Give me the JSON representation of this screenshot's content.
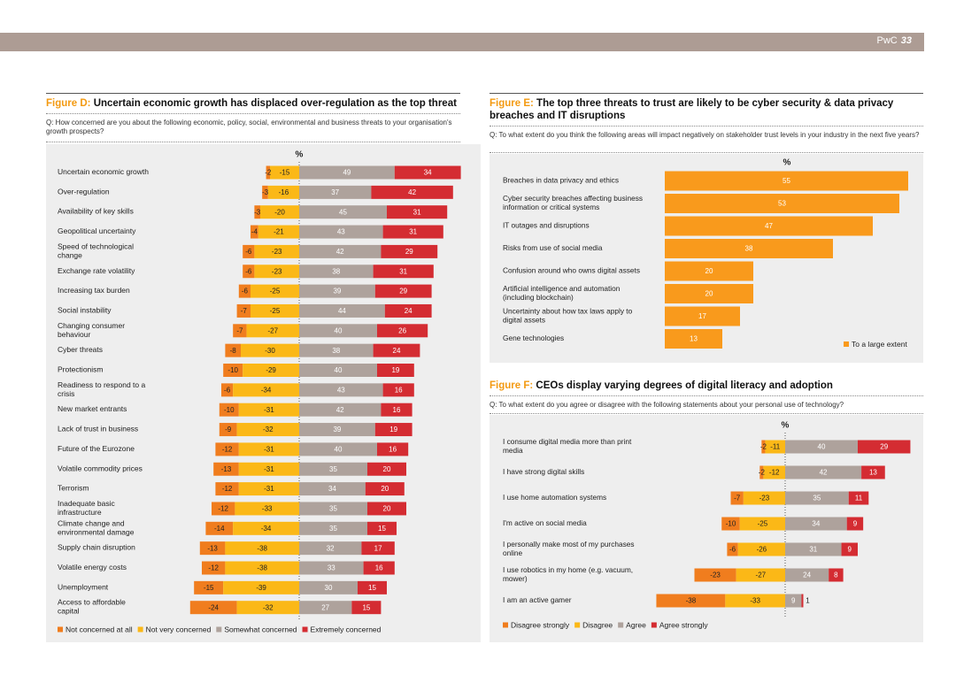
{
  "header": {
    "brand": "PwC",
    "page_number": "33"
  },
  "colors": {
    "not_concerned": "#f07d1e",
    "not_very": "#fbb817",
    "somewhat": "#aea29c",
    "extremely": "#d42c32",
    "orange": "#f99a1c",
    "panel": "#eeeeee"
  },
  "figD": {
    "label": "Figure D:",
    "title": "Uncertain economic growth has displaced over-regulation as the top threat",
    "question": "Q: How concerned are you about the following economic, policy, social, environmental and business threats to your organisation's growth prospects?",
    "unit": "%"
  },
  "figE": {
    "label": "Figure E:",
    "title": "The top three threats to trust are likely to be cyber security & data privacy breaches and IT disruptions",
    "question": "Q: To what extent do you think the following areas will impact negatively on stakeholder trust levels in your industry in the next five years?",
    "unit": "%"
  },
  "figF": {
    "label": "Figure F:",
    "title": "CEOs display varying degrees of digital literacy and adoption",
    "question": "Q: To what extent do you agree or disagree with the following statements about your personal use of technology?",
    "unit": "%"
  },
  "chart_data": [
    {
      "id": "figD",
      "type": "bar",
      "orientation": "horizontal-diverging",
      "unit": "%",
      "categories": [
        "Uncertain economic growth",
        "Over-regulation",
        "Availability of key skills",
        "Geopolitical uncertainty",
        "Speed of technological change",
        "Exchange rate volatility",
        "Increasing tax burden",
        "Social instability",
        "Changing consumer behaviour",
        "Cyber threats",
        "Protectionism",
        "Readiness to respond to a crisis",
        "New market entrants",
        "Lack of trust in business",
        "Future of the Eurozone",
        "Volatile commodity prices",
        "Terrorism",
        "Inadequate basic infrastructure",
        "Climate change and environmental damage",
        "Supply chain disruption",
        "Volatile energy costs",
        "Unemployment",
        "Access to affordable capital"
      ],
      "series": [
        {
          "name": "Not concerned at all",
          "values": [
            -2,
            -3,
            -3,
            -4,
            -6,
            -6,
            -6,
            -7,
            -7,
            -8,
            -10,
            -6,
            -10,
            -9,
            -12,
            -13,
            -12,
            -12,
            -14,
            -13,
            -12,
            -15,
            -24
          ]
        },
        {
          "name": "Not very concerned",
          "values": [
            -15,
            -16,
            -20,
            -21,
            -23,
            -23,
            -25,
            -25,
            -27,
            -30,
            -29,
            -34,
            -31,
            -32,
            -31,
            -31,
            -31,
            -33,
            -34,
            -38,
            -38,
            -39,
            -32
          ]
        },
        {
          "name": "Somewhat concerned",
          "values": [
            49,
            37,
            45,
            43,
            42,
            38,
            39,
            44,
            40,
            38,
            40,
            43,
            42,
            39,
            40,
            35,
            34,
            35,
            35,
            32,
            33,
            30,
            27
          ]
        },
        {
          "name": "Extremely concerned",
          "values": [
            34,
            42,
            31,
            31,
            29,
            31,
            29,
            24,
            26,
            24,
            19,
            16,
            16,
            19,
            16,
            20,
            20,
            20,
            15,
            17,
            16,
            15,
            15
          ]
        }
      ]
    },
    {
      "id": "figE",
      "type": "bar",
      "orientation": "horizontal",
      "unit": "%",
      "categories": [
        "Breaches in data privacy and ethics",
        "Cyber security breaches affecting business information or critical systems",
        "IT outages and disruptions",
        "Risks from use of social media",
        "Confusion around who owns digital assets",
        "Artificial intelligence and automation (including blockchain)",
        "Uncertainty about how tax laws apply to digital assets",
        "Gene technologies"
      ],
      "series": [
        {
          "name": "To a large extent",
          "values": [
            55,
            53,
            47,
            38,
            20,
            20,
            17,
            13
          ]
        }
      ]
    },
    {
      "id": "figF",
      "type": "bar",
      "orientation": "horizontal-diverging",
      "unit": "%",
      "categories": [
        "I consume digital media more than print media",
        "I have strong digital skills",
        "I use home automation systems",
        "I'm active on social media",
        "I personally make most of my purchases online",
        "I use robotics in my home (e.g. vacuum, mower)",
        "I am an active gamer"
      ],
      "series": [
        {
          "name": "Disagree strongly",
          "values": [
            -2,
            -2,
            -7,
            -10,
            -6,
            -23,
            -38
          ]
        },
        {
          "name": "Disagree",
          "values": [
            -11,
            -12,
            -23,
            -25,
            -26,
            -27,
            -33
          ]
        },
        {
          "name": "Agree",
          "values": [
            40,
            42,
            35,
            34,
            31,
            24,
            9
          ]
        },
        {
          "name": "Agree strongly",
          "values": [
            29,
            13,
            11,
            9,
            9,
            8,
            1
          ]
        }
      ]
    }
  ]
}
